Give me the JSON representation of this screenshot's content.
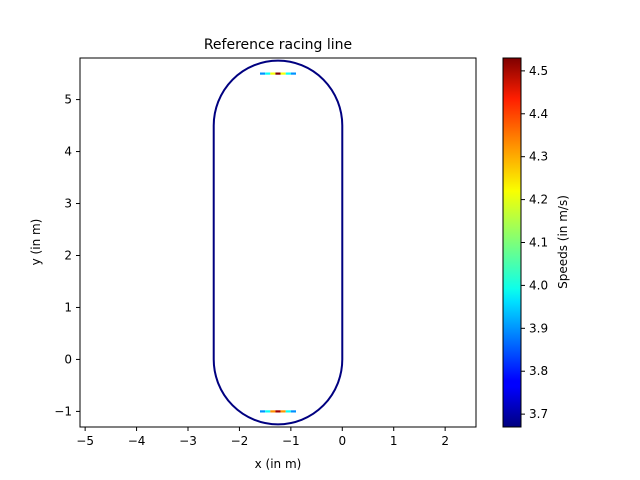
{
  "chart_data": {
    "type": "line",
    "title": "Reference racing line",
    "xlabel": "x (in m)",
    "ylabel": "y (in m)",
    "xlim": [
      -5.1,
      2.6
    ],
    "ylim": [
      -1.3,
      5.8
    ],
    "xticks": [
      -5,
      -4,
      -3,
      -2,
      -1,
      0,
      1,
      2
    ],
    "yticks": [
      -1,
      0,
      1,
      2,
      3,
      4,
      5
    ],
    "grid": false,
    "track": {
      "shape": "stadium",
      "left_x": -2.5,
      "right_x": 0.0,
      "bottom_y": 0.0,
      "top_y": 4.5,
      "end_radius": 1.25
    },
    "speed_base": 3.67,
    "speed_peaks": [
      {
        "x": -1.25,
        "y": 5.5,
        "speeds": [
          3.9,
          4.0,
          4.2,
          4.53,
          4.2,
          4.0,
          3.9
        ]
      },
      {
        "x": -1.25,
        "y": -1.0,
        "speeds": [
          3.9,
          4.0,
          4.3,
          4.5,
          4.3,
          4.0,
          3.9
        ]
      }
    ],
    "colorbar": {
      "label": "Speeds (in m/s)",
      "min": 3.67,
      "max": 4.53,
      "ticks": [
        3.7,
        3.8,
        3.9,
        4.0,
        4.1,
        4.2,
        4.3,
        4.4,
        4.5
      ],
      "colormap": "jet"
    }
  }
}
